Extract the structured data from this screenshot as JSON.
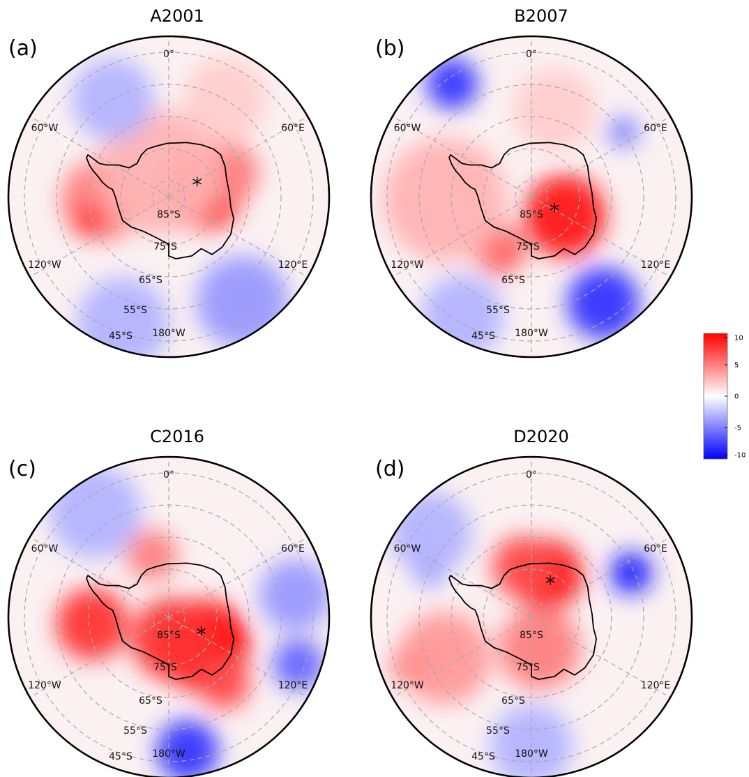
{
  "chart_data": {
    "type": "heatmap",
    "projection": "south-polar-stereographic",
    "colormap": {
      "name": "bwr",
      "min": -10,
      "max": 10,
      "colors": [
        "#0000ff",
        "#ffffff",
        "#ff0000"
      ]
    },
    "colorbar": {
      "ticks": [
        10,
        5,
        0,
        -5,
        -10
      ],
      "labels": [
        "10",
        "5",
        "0",
        "-5",
        "-10"
      ]
    },
    "grid": true,
    "longitude_labels": [
      "0°",
      "60°E",
      "120°E",
      "180°W",
      "120°W",
      "60°W"
    ],
    "latitude_labels": [
      "85°S",
      "75°S",
      "65°S",
      "55°S",
      "45°S"
    ],
    "panels": [
      {
        "label": "(a)",
        "title": "A2001",
        "star": {
          "lat": -80,
          "lon": 62
        },
        "blobs": [
          {
            "lat": -79,
            "lon": 78,
            "value": 9,
            "spread": 8
          },
          {
            "lat": -70,
            "lon": 68,
            "value": 5,
            "spread": 6
          },
          {
            "lat": -69,
            "lon": -93,
            "value": 5,
            "spread": 8
          },
          {
            "lat": -64,
            "lon": -107,
            "value": 8,
            "spread": 3
          },
          {
            "lat": -82,
            "lon": -20,
            "value": 3,
            "spread": 12
          },
          {
            "lat": -55,
            "lon": -30,
            "value": -3,
            "spread": 8
          },
          {
            "lat": -50,
            "lon": 145,
            "value": -4,
            "spread": 9
          },
          {
            "lat": -48,
            "lon": -160,
            "value": -3,
            "spread": 9
          },
          {
            "lat": -55,
            "lon": 30,
            "value": 2,
            "spread": 8
          }
        ]
      },
      {
        "label": "(b)",
        "title": "B2007",
        "star": {
          "lat": -82,
          "lon": 115
        },
        "blobs": [
          {
            "lat": -78,
            "lon": 120,
            "value": 9,
            "spread": 8
          },
          {
            "lat": -71,
            "lon": -150,
            "value": 6,
            "spread": 5
          },
          {
            "lat": -63,
            "lon": -92,
            "value": 3,
            "spread": 12
          },
          {
            "lat": -47,
            "lon": -35,
            "value": -8,
            "spread": 5
          },
          {
            "lat": -50,
            "lon": 146,
            "value": -8,
            "spread": 7
          },
          {
            "lat": -55,
            "lon": 55,
            "value": -5,
            "spread": 3
          },
          {
            "lat": -47,
            "lon": -150,
            "value": -3,
            "spread": 8
          },
          {
            "lat": -62,
            "lon": 15,
            "value": 2,
            "spread": 8
          }
        ]
      },
      {
        "label": "(c)",
        "title": "C2016",
        "star": {
          "lat": -79,
          "lon": 113
        },
        "blobs": [
          {
            "lat": -76,
            "lon": 130,
            "value": 10,
            "spread": 9
          },
          {
            "lat": -83,
            "lon": 170,
            "value": 8,
            "spread": 8
          },
          {
            "lat": -66,
            "lon": -95,
            "value": 8,
            "spread": 7
          },
          {
            "lat": -70,
            "lon": -15,
            "value": 5,
            "spread": 5
          },
          {
            "lat": -63,
            "lon": 140,
            "value": 7,
            "spread": 5
          },
          {
            "lat": -48,
            "lon": 172,
            "value": -8,
            "spread": 6
          },
          {
            "lat": -50,
            "lon": 80,
            "value": -4,
            "spread": 7
          },
          {
            "lat": -47,
            "lon": 110,
            "value": -6,
            "spread": 5
          },
          {
            "lat": -50,
            "lon": -35,
            "value": -3,
            "spread": 9
          }
        ]
      },
      {
        "label": "(d)",
        "title": "D2020",
        "star": {
          "lat": -77,
          "lon": 27
        },
        "blobs": [
          {
            "lat": -76,
            "lon": 20,
            "value": 9,
            "spread": 7
          },
          {
            "lat": -74,
            "lon": -10,
            "value": 7,
            "spread": 6
          },
          {
            "lat": -80,
            "lon": 165,
            "value": 5,
            "spread": 8
          },
          {
            "lat": -50,
            "lon": -112,
            "value": 8,
            "spread": 4
          },
          {
            "lat": -60,
            "lon": -115,
            "value": 4,
            "spread": 9
          },
          {
            "lat": -56,
            "lon": 66,
            "value": -9,
            "spread": 4
          },
          {
            "lat": -55,
            "lon": -65,
            "value": -5,
            "spread": 3
          },
          {
            "lat": -49,
            "lon": -50,
            "value": -3,
            "spread": 8
          },
          {
            "lat": -50,
            "lon": 180,
            "value": -3,
            "spread": 8
          }
        ]
      }
    ]
  }
}
